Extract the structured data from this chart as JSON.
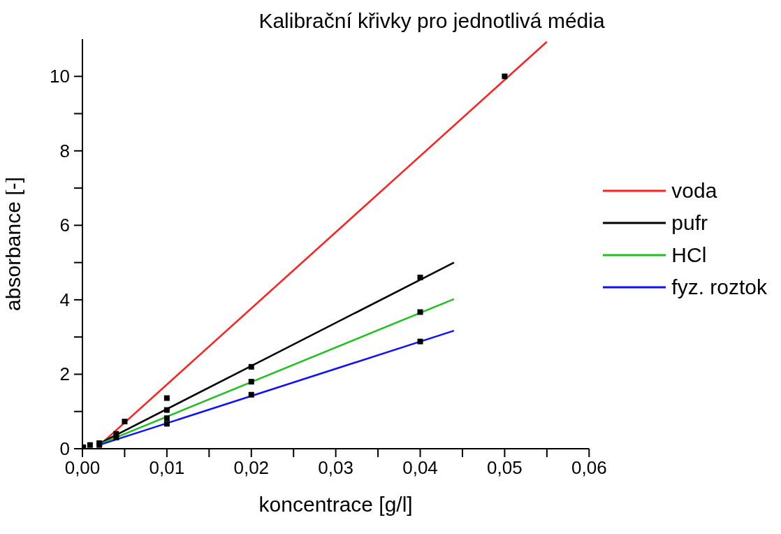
{
  "chart_data": {
    "type": "line",
    "title": "Kalibrační křivky pro jednotlivá média",
    "xlabel": "koncentrace [g/l]",
    "ylabel": "absorbance [-]",
    "xlim": [
      0,
      0.06
    ],
    "ylim": [
      0,
      11
    ],
    "xticks": [
      {
        "value": 0,
        "label": "0,00"
      },
      {
        "value": 0.005,
        "label": null
      },
      {
        "value": 0.01,
        "label": "0,01"
      },
      {
        "value": 0.015,
        "label": null
      },
      {
        "value": 0.02,
        "label": "0,02"
      },
      {
        "value": 0.025,
        "label": null
      },
      {
        "value": 0.03,
        "label": "0,03"
      },
      {
        "value": 0.035,
        "label": null
      },
      {
        "value": 0.04,
        "label": "0,04"
      },
      {
        "value": 0.045,
        "label": null
      },
      {
        "value": 0.05,
        "label": "0,05"
      },
      {
        "value": 0.055,
        "label": null
      },
      {
        "value": 0.06,
        "label": "0,06"
      }
    ],
    "yticks": [
      0,
      {
        "value": 1,
        "label": null
      },
      2,
      {
        "value": 3,
        "label": null
      },
      4,
      {
        "value": 5,
        "label": null
      },
      6,
      {
        "value": 7,
        "label": null
      },
      8,
      {
        "value": 9,
        "label": null
      },
      10
    ],
    "grid": false,
    "legend": "right",
    "line_style": "solid",
    "marker": "none",
    "series": [
      {
        "name": "voda",
        "color": "#ff2020",
        "x": [
          0.0025,
          0.055
        ],
        "values": [
          0.19,
          10.93
        ]
      },
      {
        "name": "pufr",
        "color": "#000000",
        "x": [
          0.002,
          0.044
        ],
        "values": [
          0.14,
          5.0
        ]
      },
      {
        "name": "HCl",
        "color": "#20c020",
        "x": [
          0.002,
          0.044
        ],
        "values": [
          0.12,
          4.02
        ]
      },
      {
        "name": "fyz. roztok",
        "color": "#1010ff",
        "x": [
          0.002,
          0.044
        ],
        "values": [
          0.1,
          3.17
        ]
      },
      {
        "type": "scatter",
        "marker": "square",
        "color": "#000000",
        "x": [
          0.0001,
          0.0009,
          0.002,
          0.002,
          0.004,
          0.004,
          0.005,
          0.01,
          0.01,
          0.01,
          0.01,
          0.02,
          0.02,
          0.02,
          0.04,
          0.04,
          0.04,
          0.05
        ],
        "values": [
          0.04,
          0.1,
          0.15,
          0.1,
          0.4,
          0.3,
          0.73,
          1.36,
          1.04,
          0.82,
          0.67,
          2.2,
          1.8,
          1.45,
          4.6,
          3.67,
          2.88,
          10
        ]
      }
    ]
  }
}
